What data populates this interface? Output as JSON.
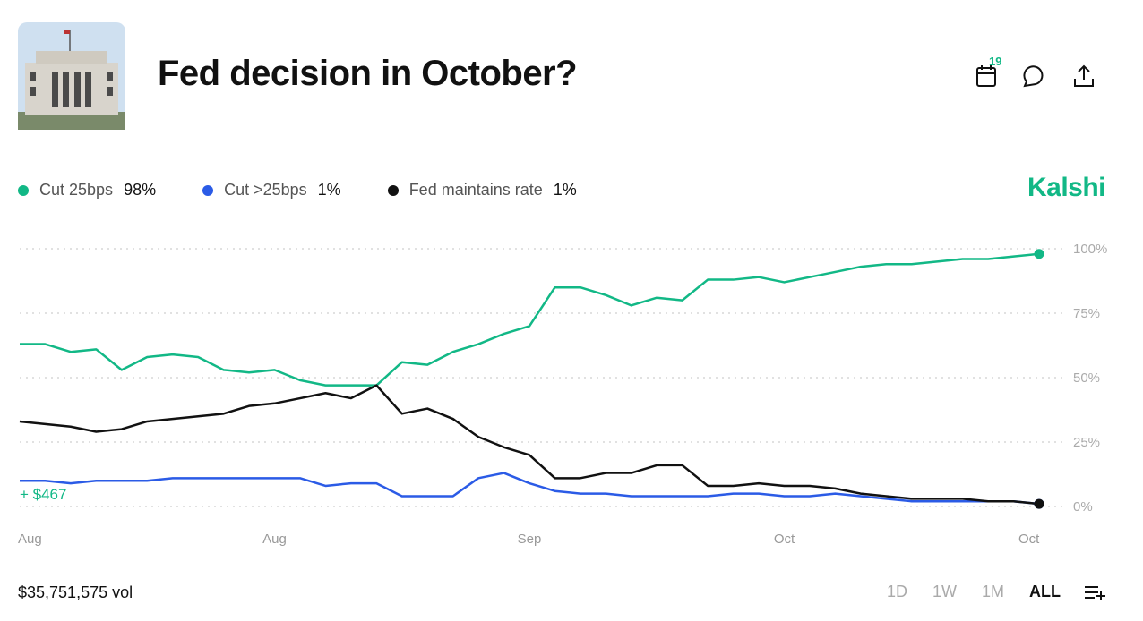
{
  "header": {
    "title": "Fed decision in October?",
    "badge": "19"
  },
  "brand": "Kalshi",
  "chart_data": {
    "type": "line",
    "x": [
      0,
      2.5,
      5,
      7.5,
      10,
      12.5,
      15,
      17.5,
      20,
      22.5,
      25,
      27.5,
      30,
      32.5,
      35,
      37.5,
      40,
      42.5,
      45,
      47.5,
      50,
      52.5,
      55,
      57.5,
      60,
      62.5,
      65,
      67.5,
      70,
      72.5,
      75,
      77.5,
      80,
      82.5,
      85,
      87.5,
      90,
      92.5,
      95,
      97.5,
      100
    ],
    "xlim": [
      0,
      100
    ],
    "xticks": [
      {
        "value": 1,
        "label": "Aug"
      },
      {
        "value": 25,
        "label": "Aug"
      },
      {
        "value": 50,
        "label": "Sep"
      },
      {
        "value": 75,
        "label": "Oct"
      },
      {
        "value": 99,
        "label": "Oct"
      }
    ],
    "ylim": [
      0,
      100
    ],
    "yticks": [
      {
        "value": 0,
        "label": "0%"
      },
      {
        "value": 25,
        "label": "25%"
      },
      {
        "value": 50,
        "label": "50%"
      },
      {
        "value": 75,
        "label": "75%"
      },
      {
        "value": 100,
        "label": "100%"
      }
    ],
    "grid": true,
    "series": [
      {
        "name": "Cut 25bps",
        "color": "#12b886",
        "last_label": "98%",
        "values": [
          63,
          63,
          60,
          61,
          53,
          58,
          59,
          58,
          53,
          52,
          53,
          49,
          47,
          47,
          47,
          56,
          55,
          60,
          63,
          67,
          70,
          85,
          85,
          82,
          78,
          81,
          80,
          88,
          88,
          89,
          87,
          89,
          91,
          93,
          94,
          94,
          95,
          96,
          96,
          97,
          98
        ]
      },
      {
        "name": "Cut >25bps",
        "color": "#2b5be6",
        "last_label": "1%",
        "values": [
          10,
          10,
          9,
          10,
          10,
          10,
          11,
          11,
          11,
          11,
          11,
          11,
          8,
          9,
          9,
          4,
          4,
          4,
          11,
          13,
          9,
          6,
          5,
          5,
          4,
          4,
          4,
          4,
          5,
          5,
          4,
          4,
          5,
          4,
          3,
          2,
          2,
          2,
          2,
          2,
          1
        ]
      },
      {
        "name": "Fed maintains rate",
        "color": "#111111",
        "last_label": "1%",
        "values": [
          33,
          32,
          31,
          29,
          30,
          33,
          34,
          35,
          36,
          39,
          40,
          42,
          44,
          42,
          47,
          36,
          38,
          34,
          27,
          23,
          20,
          11,
          11,
          13,
          13,
          16,
          16,
          8,
          8,
          9,
          8,
          8,
          7,
          5,
          4,
          3,
          3,
          3,
          2,
          2,
          1
        ]
      }
    ],
    "annotation": "+ $467"
  },
  "footer": {
    "volume": "$35,751,575 vol",
    "ranges": [
      "1D",
      "1W",
      "1M",
      "ALL"
    ]
  }
}
